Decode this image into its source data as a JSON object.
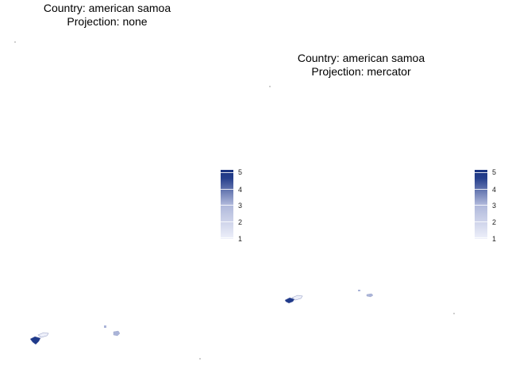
{
  "panels": [
    {
      "title_line1": "Country: american samoa",
      "title_line2": "Projection: none"
    },
    {
      "title_line1": "Country: american samoa",
      "title_line2": "Projection: mercator"
    }
  ],
  "legend": {
    "labels": [
      "5",
      "4",
      "3",
      "2",
      "1"
    ],
    "range": [
      1,
      5
    ],
    "low_color": "#eef0fa",
    "high_color": "#1a3380"
  },
  "colors": {
    "high": "#1f3a8a",
    "mid": "#aab4d8",
    "low": "#e8ecf8",
    "outline": "#9aa3c8"
  }
}
